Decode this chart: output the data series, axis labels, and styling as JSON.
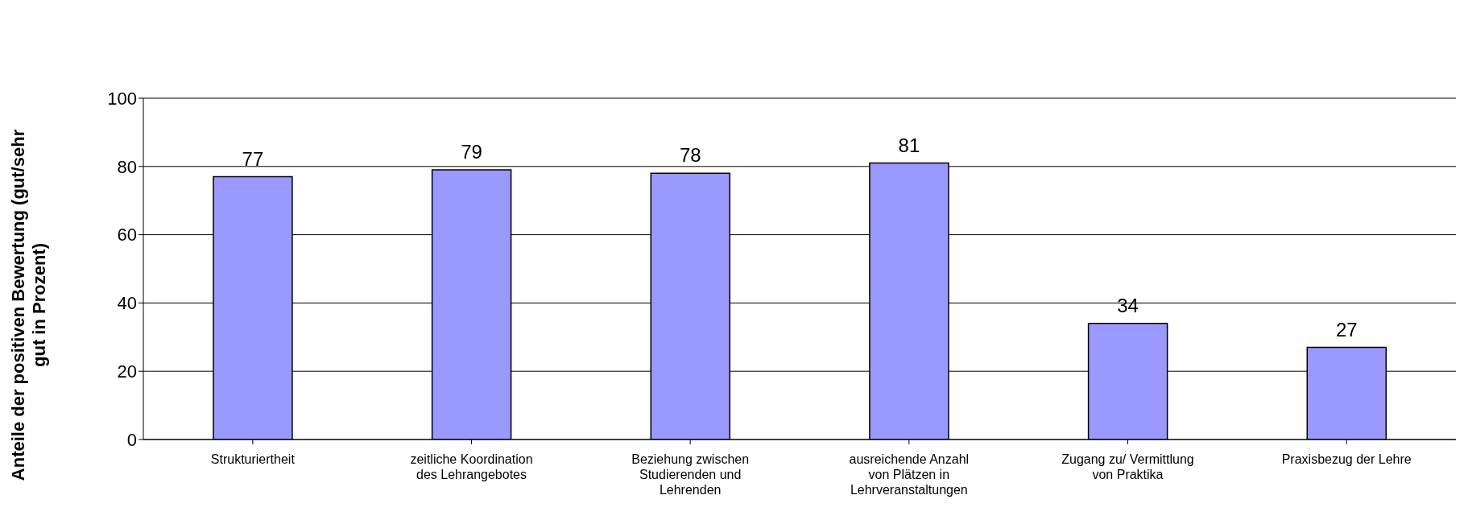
{
  "chart_data": {
    "type": "bar",
    "ylabel": "Anteile der positiven Bewertung (gut/sehr gut in Prozent)",
    "categories": [
      "Strukturiertheit",
      "zeitliche Koordination des Lehrangebotes",
      "Beziehung zwischen Studierenden und Lehrenden",
      "ausreichende Anzahl von Plätzen in Lehrveranstaltungen",
      "Zugang zu/ Vermittlung von Praktika",
      "Praxisbezug der Lehre"
    ],
    "values": [
      77,
      79,
      78,
      81,
      34,
      27
    ],
    "color": "#9999ff",
    "ylim": [
      0,
      100
    ],
    "yticks": [
      0,
      20,
      40,
      60,
      80,
      100
    ],
    "grid": "y",
    "data_labels": true,
    "legend": false
  }
}
